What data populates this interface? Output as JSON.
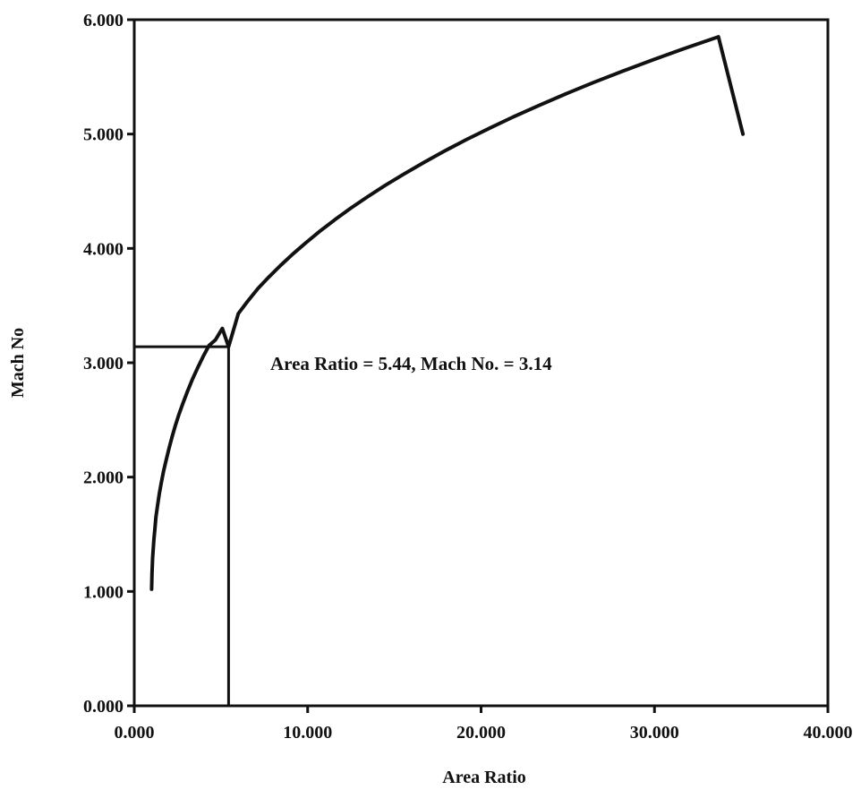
{
  "chart_data": {
    "type": "line",
    "title": "",
    "xlabel": "Area Ratio",
    "ylabel": "Mach No",
    "xlim": [
      0,
      40
    ],
    "ylim": [
      0,
      6
    ],
    "xticks": [
      0,
      10,
      20,
      30,
      40
    ],
    "yticks": [
      0,
      1,
      2,
      3,
      4,
      5,
      6
    ],
    "xtick_labels": [
      "0.000",
      "10.000",
      "20.000",
      "30.000",
      "40.000"
    ],
    "ytick_labels": [
      "0.000",
      "1.000",
      "2.000",
      "3.000",
      "4.000",
      "5.000",
      "6.000"
    ],
    "grid": false,
    "legend": "none",
    "series": [
      {
        "x": [
          1.0,
          1.02,
          1.06,
          1.13,
          1.19,
          1.25,
          1.34,
          1.44,
          1.56,
          1.69,
          1.84,
          2.0,
          2.18,
          2.37,
          2.58,
          2.82,
          3.07,
          3.34,
          3.64,
          3.96,
          4.31,
          4.68,
          5.08,
          5.44,
          6.0,
          6.55,
          7.14,
          7.76,
          8.43,
          9.14,
          9.9,
          10.7,
          11.56,
          12.47,
          13.44,
          14.46,
          15.54,
          16.68,
          17.88,
          19.14,
          20.47,
          21.86,
          23.33,
          24.86,
          26.47,
          28.16,
          29.92,
          31.77,
          33.69,
          35.1
        ],
        "y": [
          1.02,
          1.15,
          1.29,
          1.45,
          1.55,
          1.65,
          1.75,
          1.85,
          1.95,
          2.05,
          2.15,
          2.25,
          2.35,
          2.45,
          2.55,
          2.65,
          2.75,
          2.85,
          2.95,
          3.05,
          3.15,
          3.2,
          3.3,
          3.14,
          3.43,
          3.54,
          3.65,
          3.75,
          3.85,
          3.95,
          4.05,
          4.15,
          4.25,
          4.35,
          4.45,
          4.55,
          4.65,
          4.75,
          4.85,
          4.95,
          5.05,
          5.15,
          5.25,
          5.35,
          5.45,
          5.55,
          5.65,
          5.75,
          5.85,
          5.0
        ]
      }
    ],
    "highlight_point": {
      "x": 5.44,
      "y": 3.14
    },
    "annotation": "Area Ratio = 5.44,  Mach No. = 3.14"
  }
}
